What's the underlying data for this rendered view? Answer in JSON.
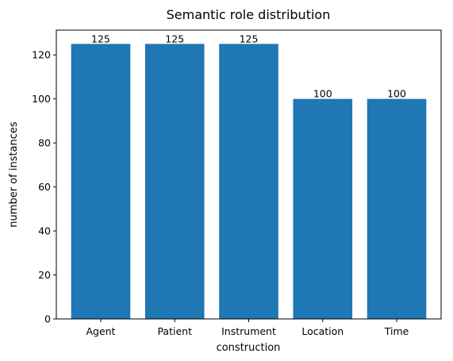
{
  "chart_data": {
    "type": "bar",
    "title": "Semantic role distribution",
    "xlabel": "construction",
    "ylabel": "number of instances",
    "categories": [
      "Agent",
      "Patient",
      "Instrument",
      "Location",
      "Time"
    ],
    "values": [
      125,
      125,
      125,
      100,
      100
    ],
    "data_labels": [
      "125",
      "125",
      "125",
      "100",
      "100"
    ],
    "ylim": [
      0,
      131.25
    ],
    "yticks": [
      0,
      20,
      40,
      60,
      80,
      100,
      120
    ],
    "ytick_labels": [
      "0",
      "20",
      "40",
      "60",
      "80",
      "100",
      "120"
    ],
    "grid": false,
    "legend": "none",
    "bar_color": "#1f77b4"
  }
}
